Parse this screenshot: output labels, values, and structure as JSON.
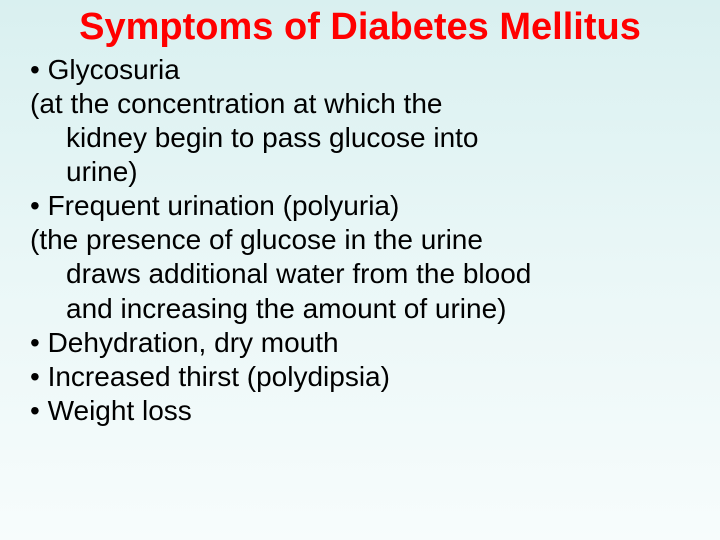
{
  "title": {
    "text": "Symptoms of Diabetes Mellitus",
    "color": "#ff0000",
    "fontsize": 38
  },
  "body": {
    "color": "#000000",
    "fontsize": 28,
    "lines": [
      {
        "text": "• Glycosuria",
        "indent": false
      },
      {
        "text": "(at the concentration at which the",
        "indent": false
      },
      {
        "text": "kidney begin to pass glucose into",
        "indent": true
      },
      {
        "text": "urine)",
        "indent": true
      },
      {
        "text": "• Frequent urination (polyuria)",
        "indent": false
      },
      {
        "text": "(the presence of glucose in the urine",
        "indent": false
      },
      {
        "text": "draws additional water from the blood",
        "indent": true
      },
      {
        "text": "and increasing the amount of urine)",
        "indent": true
      },
      {
        "text": "• Dehydration, dry mouth",
        "indent": false
      },
      {
        "text": "• Increased thirst (polydipsia)",
        "indent": false
      },
      {
        "text": "• Weight loss",
        "indent": false
      }
    ]
  }
}
